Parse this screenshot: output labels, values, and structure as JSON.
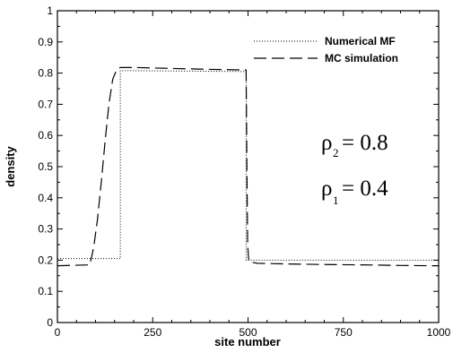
{
  "chart_data": {
    "type": "line",
    "xlabel": "site number",
    "ylabel": "density",
    "xlim": [
      0,
      1000
    ],
    "ylim": [
      0,
      1
    ],
    "xticks": [
      "0",
      "250",
      "500",
      "750",
      "1000"
    ],
    "yticks": [
      "0",
      "0.1",
      "0.2",
      "0.3",
      "0.4",
      "0.5",
      "0.6",
      "0.7",
      "0.8",
      "0.9",
      "1"
    ],
    "grid": false,
    "legend_position": "top-right",
    "series": [
      {
        "name": "Numerical MF",
        "style": "dotted",
        "x": [
          0,
          165,
          165,
          495,
          495,
          1000
        ],
        "y": [
          0.205,
          0.205,
          0.808,
          0.805,
          0.2,
          0.2
        ]
      },
      {
        "name": "MC simulation",
        "style": "dashed",
        "x": [
          0,
          85,
          95,
          105,
          115,
          125,
          135,
          145,
          155,
          165,
          200,
          300,
          400,
          495,
          497,
          499,
          502,
          525,
          600,
          700,
          800,
          900,
          1000
        ],
        "y": [
          0.182,
          0.185,
          0.24,
          0.33,
          0.45,
          0.58,
          0.7,
          0.78,
          0.81,
          0.818,
          0.818,
          0.815,
          0.812,
          0.81,
          0.5,
          0.25,
          0.195,
          0.19,
          0.188,
          0.186,
          0.185,
          0.183,
          0.182
        ]
      }
    ],
    "annotations": [
      {
        "symbol": "ρ",
        "subscript": "2",
        "text": "= 0.8"
      },
      {
        "symbol": "ρ",
        "subscript": "1",
        "text": "= 0.4"
      }
    ]
  }
}
